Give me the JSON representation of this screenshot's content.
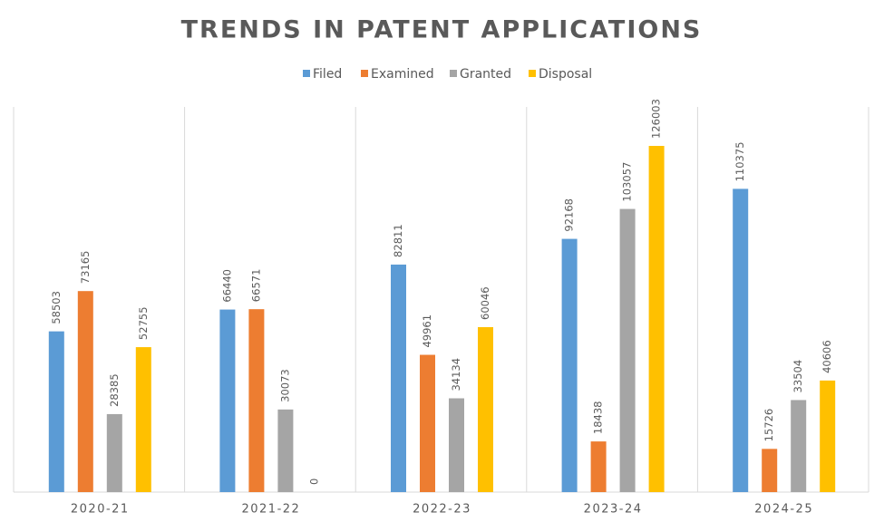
{
  "chart_data": {
    "type": "bar",
    "title": "TRENDS IN PATENT APPLICATIONS",
    "categories": [
      "2020-21",
      "2021-22",
      "2022-23",
      "2023-24",
      "2024-25"
    ],
    "series": [
      {
        "name": "Filed",
        "color": "#5b9bd5",
        "values": [
          58503,
          66440,
          82811,
          92168,
          110375
        ]
      },
      {
        "name": "Examined",
        "color": "#ed7d31",
        "values": [
          73165,
          66571,
          49961,
          18438,
          15726
        ]
      },
      {
        "name": "Granted",
        "color": "#a5a5a5",
        "values": [
          28385,
          30073,
          34134,
          103057,
          33504
        ]
      },
      {
        "name": "Disposal",
        "color": "#ffc000",
        "values": [
          52755,
          0,
          60046,
          126003,
          40606
        ]
      }
    ],
    "legend": "top"
  }
}
